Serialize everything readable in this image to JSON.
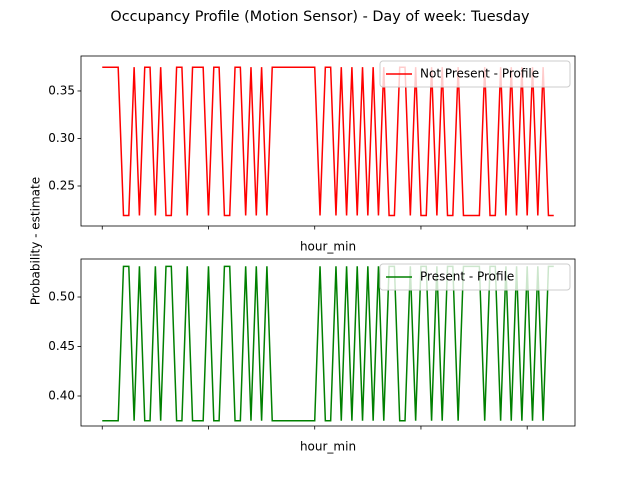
{
  "title": "Occupancy Profile (Motion Sensor) - Day of week: Tuesday",
  "ylabel": "Probability - estimate",
  "chart_data": [
    {
      "type": "line",
      "xlabel": "hour_min",
      "legend": "upper right",
      "categories": [
        null,
        null,
        null,
        null,
        null,
        null,
        null,
        null,
        null,
        null,
        null,
        null,
        null,
        null,
        null,
        null,
        null,
        null,
        null,
        null,
        null,
        null,
        null,
        null,
        null,
        null,
        null,
        null,
        null,
        null,
        null,
        null,
        null,
        null,
        null,
        null,
        null,
        null,
        null,
        null,
        null,
        null,
        null,
        null,
        null,
        null,
        null,
        null,
        null,
        null,
        null,
        null,
        null,
        null,
        null,
        null,
        null,
        null,
        null,
        null,
        null,
        null,
        null,
        null,
        null,
        null,
        null,
        null,
        null,
        null,
        null,
        null,
        null,
        null,
        null,
        null,
        null,
        null,
        null,
        null,
        null,
        null,
        null,
        null,
        null,
        null
      ],
      "xlim": [
        -4,
        89
      ],
      "xticks": [
        0,
        20,
        40,
        60,
        80
      ],
      "ylim": [
        0.2079,
        0.3868
      ],
      "yticks": [
        0.25,
        {
          "value": 0.3,
          "label": "0.30"
        },
        0.35
      ],
      "series": [
        {
          "name": "Not Present - Profile",
          "color": "#ff0000",
          "values": [
            0.375,
            0.375,
            0.375,
            0.375,
            0.219,
            0.219,
            0.375,
            0.219,
            0.375,
            0.375,
            0.219,
            0.375,
            0.219,
            0.219,
            0.375,
            0.375,
            0.219,
            0.375,
            0.375,
            0.375,
            0.219,
            0.375,
            0.375,
            0.219,
            0.219,
            0.375,
            0.375,
            0.219,
            0.375,
            0.219,
            0.375,
            0.219,
            0.375,
            0.375,
            0.375,
            0.375,
            0.375,
            0.375,
            0.375,
            0.375,
            0.375,
            0.219,
            0.375,
            0.375,
            0.219,
            0.375,
            0.219,
            0.375,
            0.219,
            0.375,
            0.219,
            0.375,
            0.219,
            0.375,
            0.219,
            0.219,
            0.375,
            0.375,
            0.219,
            0.375,
            0.219,
            0.219,
            0.375,
            0.219,
            0.375,
            0.219,
            0.219,
            0.375,
            0.219,
            0.219,
            0.219,
            0.219,
            0.375,
            0.219,
            0.219,
            0.375,
            0.219,
            0.375,
            0.219,
            0.375,
            0.219,
            0.375,
            0.219,
            0.375,
            0.219,
            0.219
          ]
        }
      ]
    },
    {
      "type": "line",
      "xlabel": "hour_min",
      "legend": "upper right",
      "categories": [
        null,
        null,
        null,
        null,
        null,
        null,
        null,
        null,
        null,
        null,
        null,
        null,
        null,
        null,
        null,
        null,
        null,
        null,
        null,
        null,
        null,
        null,
        null,
        null,
        null,
        null,
        null,
        null,
        null,
        null,
        null,
        null,
        null,
        null,
        null,
        null,
        null,
        null,
        null,
        null,
        null,
        null,
        null,
        null,
        null,
        null,
        null,
        null,
        null,
        null,
        null,
        null,
        null,
        null,
        null,
        null,
        null,
        null,
        null,
        null,
        null,
        null,
        null,
        null,
        null,
        null,
        null,
        null,
        null,
        null,
        null,
        null,
        null,
        null,
        null,
        null,
        null,
        null,
        null,
        null,
        null,
        null,
        null,
        null,
        null,
        null
      ],
      "xlim": [
        -4,
        89
      ],
      "xticks": [
        0,
        20,
        40,
        60,
        80
      ],
      "ylim": [
        0.3697,
        0.5384
      ],
      "yticks": [
        {
          "value": 0.4,
          "label": "0.40"
        },
        0.45,
        {
          "value": 0.5,
          "label": "0.50"
        }
      ],
      "series": [
        {
          "name": "Present - Profile",
          "color": "#008000",
          "values": [
            0.375,
            0.375,
            0.375,
            0.375,
            0.531,
            0.531,
            0.375,
            0.531,
            0.375,
            0.375,
            0.531,
            0.375,
            0.531,
            0.531,
            0.375,
            0.375,
            0.531,
            0.375,
            0.375,
            0.375,
            0.531,
            0.375,
            0.375,
            0.531,
            0.531,
            0.375,
            0.375,
            0.531,
            0.375,
            0.531,
            0.375,
            0.531,
            0.375,
            0.375,
            0.375,
            0.375,
            0.375,
            0.375,
            0.375,
            0.375,
            0.375,
            0.531,
            0.375,
            0.375,
            0.531,
            0.375,
            0.531,
            0.375,
            0.531,
            0.375,
            0.531,
            0.375,
            0.531,
            0.375,
            0.531,
            0.531,
            0.375,
            0.375,
            0.531,
            0.375,
            0.531,
            0.531,
            0.375,
            0.531,
            0.375,
            0.531,
            0.531,
            0.375,
            0.531,
            0.531,
            0.531,
            0.531,
            0.375,
            0.531,
            0.531,
            0.375,
            0.531,
            0.375,
            0.531,
            0.375,
            0.531,
            0.375,
            0.531,
            0.375,
            0.531,
            0.531
          ]
        }
      ]
    }
  ]
}
